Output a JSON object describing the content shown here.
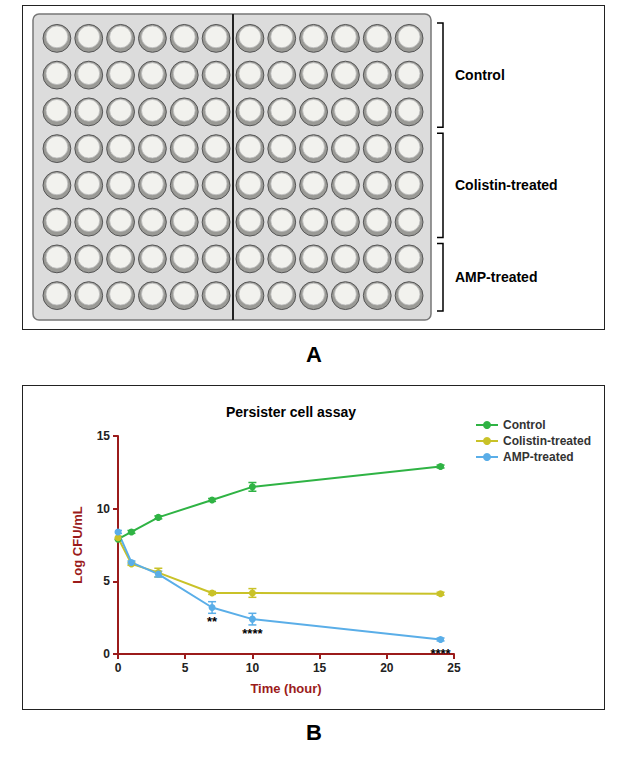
{
  "panel_a": {
    "panel_label": "A",
    "groups": [
      {
        "label": "Control",
        "rows": 3
      },
      {
        "label": "Colistin-treated",
        "rows": 3
      },
      {
        "label": "AMP-treated",
        "rows": 2
      }
    ]
  },
  "chart_data": {
    "panel_label": "B",
    "type": "line",
    "title": "Persister cell assay",
    "x_label": "Time (hour)",
    "y_label": "Log CFU/mL",
    "x": [
      0,
      1,
      3,
      7,
      10,
      24
    ],
    "series": [
      {
        "name": "Control",
        "color": "#2fb344",
        "values": [
          7.9,
          8.4,
          9.4,
          10.6,
          11.5,
          12.9
        ],
        "errors": [
          0.1,
          0.1,
          0.1,
          0.1,
          0.3,
          0.1
        ]
      },
      {
        "name": "Colistin-treated",
        "color": "#c9c228",
        "values": [
          8.0,
          6.2,
          5.6,
          4.2,
          4.2,
          4.15
        ],
        "errors": [
          0.1,
          0.1,
          0.3,
          0.1,
          0.3,
          0.1
        ]
      },
      {
        "name": "AMP-treated",
        "color": "#5aaee8",
        "values": [
          8.4,
          6.3,
          5.5,
          3.2,
          2.4,
          1.0
        ],
        "errors": [
          0.1,
          0.1,
          0.2,
          0.4,
          0.4,
          0.1
        ]
      }
    ],
    "xlim": [
      0,
      25
    ],
    "xticks": [
      0,
      5,
      10,
      15,
      20,
      25
    ],
    "ylim": [
      0,
      15
    ],
    "yticks": [
      0,
      5,
      10,
      15
    ],
    "grid": false,
    "legend": "right",
    "marker": "circle",
    "annotations": [
      {
        "text": "**",
        "series": "AMP-treated",
        "x": 7
      },
      {
        "text": "****",
        "series": "AMP-treated",
        "x": 10
      },
      {
        "text": "****",
        "series": "AMP-treated",
        "x": 24
      }
    ]
  }
}
